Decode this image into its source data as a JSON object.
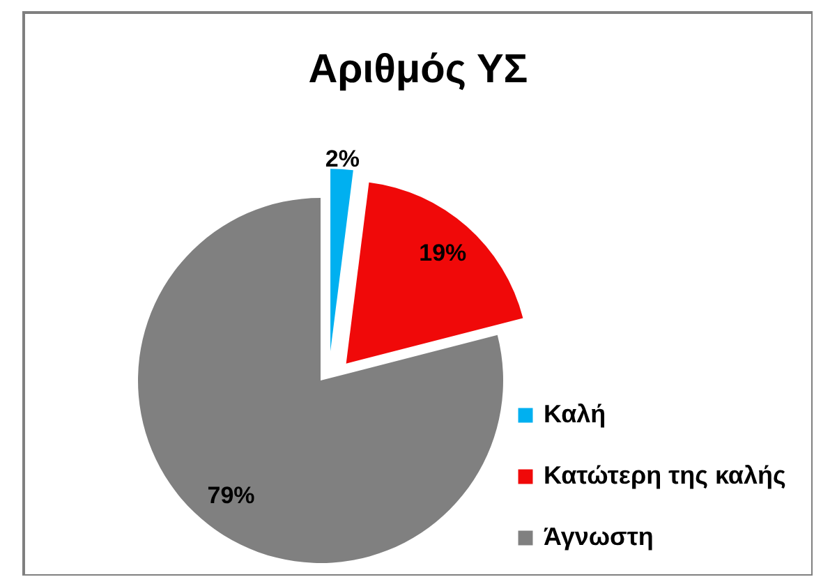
{
  "chart_data": {
    "type": "pie",
    "title": "Αριθμός ΥΣ",
    "categories": [
      "Καλή",
      "Κατώτερη της καλής",
      "Άγνωστη"
    ],
    "values": [
      2,
      19,
      79
    ],
    "colors": [
      "#00b0f0",
      "#f00909",
      "#808080"
    ],
    "value_labels": [
      "2%",
      "19%",
      "79%"
    ],
    "legend": "bottom right"
  }
}
